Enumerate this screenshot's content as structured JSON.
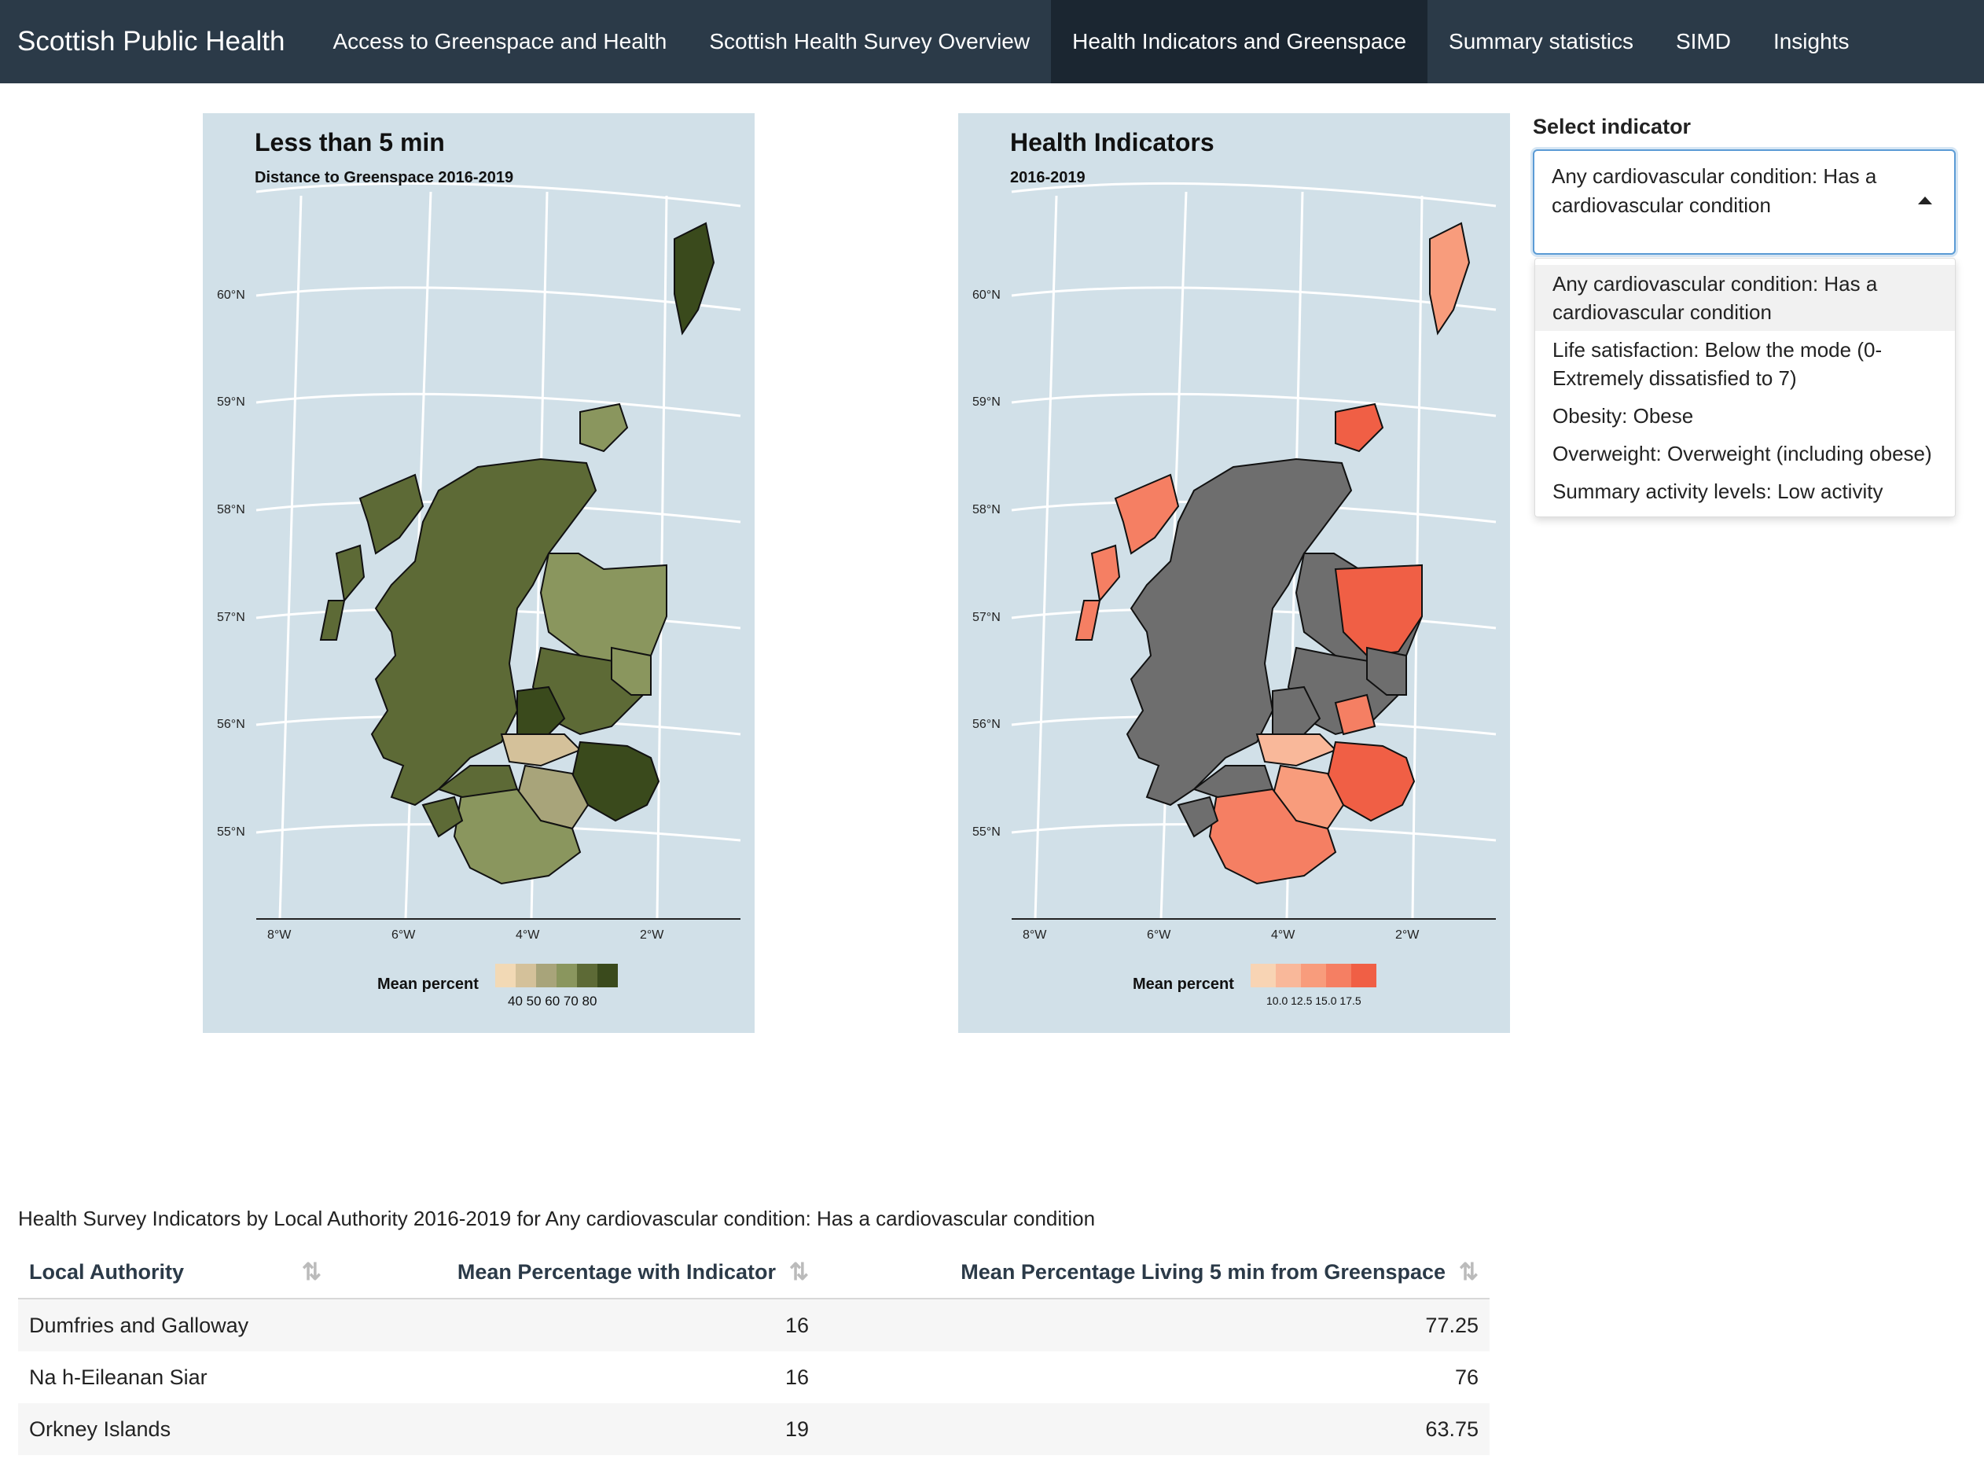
{
  "app": {
    "brand": "Scottish Public Health",
    "nav": [
      {
        "label": "Access to Greenspace and Health",
        "active": false
      },
      {
        "label": "Scottish Health Survey Overview",
        "active": false
      },
      {
        "label": "Health Indicators and Greenspace",
        "active": true
      },
      {
        "label": "Summary statistics",
        "active": false
      },
      {
        "label": "SIMD",
        "active": false
      },
      {
        "label": "Insights",
        "active": false
      }
    ]
  },
  "maps": {
    "greenspace": {
      "title": "Less than 5 min",
      "subtitle": "Distance to Greenspace 2016-2019",
      "legend_title": "Mean percent",
      "legend_ticks": "40 50 60 70 80",
      "colors": [
        "#f2d9b5",
        "#d4c19a",
        "#a8a47a",
        "#8a965e",
        "#5d6a36",
        "#3a4a1c"
      ]
    },
    "health": {
      "title": "Health Indicators",
      "subtitle": "2016-2019",
      "legend_title": "Mean percent",
      "legend_ticks": "10.0 12.5 15.0 17.5",
      "colors": [
        "#f8d4b4",
        "#f9b89a",
        "#f89c7c",
        "#f57f63",
        "#f05f45"
      ],
      "na_color": "#6e6e6e"
    },
    "lat_labels": [
      "60°N",
      "59°N",
      "58°N",
      "57°N",
      "56°N",
      "55°N"
    ],
    "lon_labels": [
      "8°W",
      "6°W",
      "4°W",
      "2°W"
    ]
  },
  "selector": {
    "label": "Select indicator",
    "selected": "Any cardiovascular condition: Has a cardiovascular condition",
    "options": [
      "Any cardiovascular condition: Has a cardiovascular condition",
      "Life satisfaction: Below the mode (0-Extremely dissatisfied to 7)",
      "Obesity: Obese",
      "Overweight: Overweight (including obese)",
      "Summary activity levels: Low activity"
    ]
  },
  "table": {
    "caption": "Health Survey Indicators by Local Authority 2016-2019 for Any cardiovascular condition: Has a cardiovascular condition",
    "headers": [
      "Local Authority",
      "Mean Percentage with Indicator",
      "Mean Percentage Living 5 min from Greenspace"
    ],
    "rows": [
      [
        "Dumfries and Galloway",
        "16",
        "77.25"
      ],
      [
        "Na h-Eileanan Siar",
        "16",
        "76"
      ],
      [
        "Orkney Islands",
        "19",
        "63.75"
      ]
    ]
  }
}
